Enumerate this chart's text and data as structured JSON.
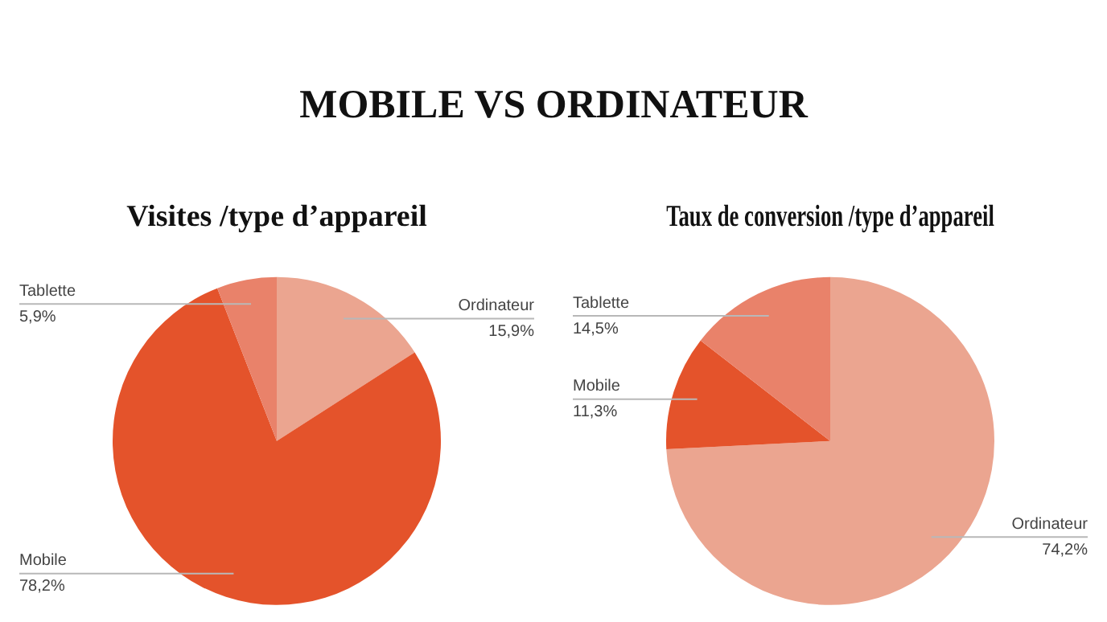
{
  "chart_data": [
    {
      "type": "other",
      "title": "MOBILE VS ORDINATEUR"
    },
    {
      "type": "pie",
      "title": "Visites /type d’appareil",
      "categories": [
        "Ordinateur",
        "Mobile",
        "Tablette"
      ],
      "values": [
        15.9,
        78.2,
        5.9
      ],
      "colors": [
        "#eba590",
        "#e4532b",
        "#e9826a"
      ],
      "value_labels": [
        "15,9%",
        "78,2%",
        "5,9%"
      ],
      "legend": false
    },
    {
      "type": "pie",
      "title": "Taux de conversion /type d’appareil",
      "categories": [
        "Ordinateur",
        "Mobile",
        "Tablette"
      ],
      "values": [
        74.2,
        11.3,
        14.5
      ],
      "colors": [
        "#eba590",
        "#e4532b",
        "#e9826a"
      ],
      "value_labels": [
        "74,2%",
        "11,3%",
        "14,5%"
      ],
      "legend": false
    }
  ]
}
